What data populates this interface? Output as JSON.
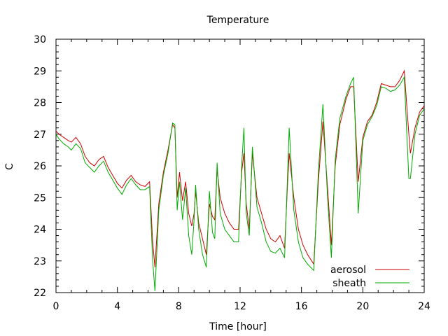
{
  "chart_data": {
    "type": "line",
    "title": "Temperature",
    "xlabel": "Time [hour]",
    "ylabel": "C",
    "xlim": [
      0,
      24
    ],
    "ylim": [
      22,
      30
    ],
    "xticks": [
      0,
      4,
      8,
      12,
      16,
      20,
      24
    ],
    "yticks": [
      22,
      23,
      24,
      25,
      26,
      27,
      28,
      29,
      30
    ],
    "legend_position": "bottom-right",
    "grid": false,
    "series": [
      {
        "name": "aerosol",
        "color": "#cc0000",
        "points": [
          [
            0.0,
            27.1
          ],
          [
            0.2,
            27.0
          ],
          [
            0.5,
            26.9
          ],
          [
            0.8,
            26.8
          ],
          [
            1.0,
            26.75
          ],
          [
            1.3,
            26.9
          ],
          [
            1.6,
            26.7
          ],
          [
            1.9,
            26.3
          ],
          [
            2.2,
            26.1
          ],
          [
            2.5,
            26.0
          ],
          [
            2.8,
            26.2
          ],
          [
            3.1,
            26.3
          ],
          [
            3.4,
            25.95
          ],
          [
            3.7,
            25.7
          ],
          [
            4.0,
            25.45
          ],
          [
            4.3,
            25.3
          ],
          [
            4.6,
            25.55
          ],
          [
            4.9,
            25.7
          ],
          [
            5.2,
            25.5
          ],
          [
            5.5,
            25.4
          ],
          [
            5.8,
            25.35
          ],
          [
            6.1,
            25.5
          ],
          [
            6.3,
            23.6
          ],
          [
            6.45,
            22.8
          ],
          [
            6.7,
            24.8
          ],
          [
            7.0,
            25.8
          ],
          [
            7.3,
            26.5
          ],
          [
            7.6,
            27.3
          ],
          [
            7.75,
            27.2
          ],
          [
            7.9,
            25.0
          ],
          [
            8.05,
            25.8
          ],
          [
            8.25,
            24.9
          ],
          [
            8.45,
            25.5
          ],
          [
            8.65,
            24.5
          ],
          [
            8.85,
            24.1
          ],
          [
            9.0,
            24.5
          ],
          [
            9.1,
            25.2
          ],
          [
            9.3,
            24.2
          ],
          [
            9.55,
            23.7
          ],
          [
            9.8,
            23.2
          ],
          [
            10.0,
            24.8
          ],
          [
            10.2,
            24.4
          ],
          [
            10.35,
            24.3
          ],
          [
            10.5,
            25.9
          ],
          [
            10.7,
            25.0
          ],
          [
            11.0,
            24.5
          ],
          [
            11.3,
            24.2
          ],
          [
            11.6,
            24.0
          ],
          [
            11.9,
            24.0
          ],
          [
            12.1,
            25.8
          ],
          [
            12.25,
            26.4
          ],
          [
            12.4,
            24.8
          ],
          [
            12.6,
            24.0
          ],
          [
            12.8,
            26.4
          ],
          [
            13.1,
            25.0
          ],
          [
            13.4,
            24.5
          ],
          [
            13.7,
            24.0
          ],
          [
            14.0,
            23.7
          ],
          [
            14.3,
            23.6
          ],
          [
            14.6,
            23.8
          ],
          [
            14.9,
            23.4
          ],
          [
            15.1,
            25.5
          ],
          [
            15.2,
            26.4
          ],
          [
            15.5,
            25.0
          ],
          [
            15.8,
            24.0
          ],
          [
            16.1,
            23.5
          ],
          [
            16.4,
            23.2
          ],
          [
            16.8,
            22.9
          ],
          [
            17.1,
            25.5
          ],
          [
            17.4,
            27.4
          ],
          [
            17.7,
            25.3
          ],
          [
            17.95,
            23.5
          ],
          [
            18.2,
            26.0
          ],
          [
            18.5,
            27.3
          ],
          [
            18.9,
            28.1
          ],
          [
            19.2,
            28.5
          ],
          [
            19.4,
            28.5
          ],
          [
            19.7,
            25.5
          ],
          [
            20.0,
            26.9
          ],
          [
            20.3,
            27.4
          ],
          [
            20.6,
            27.6
          ],
          [
            20.9,
            28.0
          ],
          [
            21.2,
            28.6
          ],
          [
            21.5,
            28.55
          ],
          [
            21.8,
            28.5
          ],
          [
            22.1,
            28.5
          ],
          [
            22.4,
            28.7
          ],
          [
            22.7,
            29.0
          ],
          [
            23.0,
            27.0
          ],
          [
            23.1,
            26.4
          ],
          [
            23.4,
            27.2
          ],
          [
            23.7,
            27.7
          ],
          [
            24.0,
            27.9
          ]
        ]
      },
      {
        "name": "sheath",
        "color": "#00aa00",
        "points": [
          [
            0.0,
            27.0
          ],
          [
            0.2,
            26.85
          ],
          [
            0.5,
            26.7
          ],
          [
            0.8,
            26.6
          ],
          [
            1.0,
            26.5
          ],
          [
            1.3,
            26.7
          ],
          [
            1.6,
            26.55
          ],
          [
            1.9,
            26.1
          ],
          [
            2.2,
            25.95
          ],
          [
            2.5,
            25.8
          ],
          [
            2.8,
            26.0
          ],
          [
            3.1,
            26.15
          ],
          [
            3.4,
            25.8
          ],
          [
            3.7,
            25.55
          ],
          [
            4.0,
            25.3
          ],
          [
            4.3,
            25.1
          ],
          [
            4.6,
            25.4
          ],
          [
            4.9,
            25.6
          ],
          [
            5.2,
            25.4
          ],
          [
            5.5,
            25.25
          ],
          [
            5.8,
            25.25
          ],
          [
            6.1,
            25.35
          ],
          [
            6.3,
            23.0
          ],
          [
            6.45,
            22.05
          ],
          [
            6.7,
            24.6
          ],
          [
            7.0,
            25.7
          ],
          [
            7.3,
            26.4
          ],
          [
            7.6,
            27.35
          ],
          [
            7.75,
            27.3
          ],
          [
            7.9,
            24.6
          ],
          [
            8.05,
            25.5
          ],
          [
            8.25,
            24.3
          ],
          [
            8.45,
            25.3
          ],
          [
            8.65,
            23.8
          ],
          [
            8.85,
            23.2
          ],
          [
            9.0,
            24.3
          ],
          [
            9.1,
            25.4
          ],
          [
            9.3,
            24.0
          ],
          [
            9.55,
            23.2
          ],
          [
            9.8,
            22.8
          ],
          [
            10.0,
            25.2
          ],
          [
            10.2,
            23.9
          ],
          [
            10.35,
            23.7
          ],
          [
            10.5,
            26.1
          ],
          [
            10.7,
            24.5
          ],
          [
            11.0,
            24.0
          ],
          [
            11.3,
            23.8
          ],
          [
            11.6,
            23.6
          ],
          [
            11.9,
            23.6
          ],
          [
            12.1,
            26.0
          ],
          [
            12.25,
            27.2
          ],
          [
            12.4,
            24.5
          ],
          [
            12.6,
            23.8
          ],
          [
            12.8,
            26.6
          ],
          [
            13.1,
            24.7
          ],
          [
            13.4,
            24.2
          ],
          [
            13.7,
            23.6
          ],
          [
            14.0,
            23.3
          ],
          [
            14.3,
            23.25
          ],
          [
            14.6,
            23.4
          ],
          [
            14.9,
            23.1
          ],
          [
            15.1,
            25.8
          ],
          [
            15.2,
            27.2
          ],
          [
            15.5,
            24.6
          ],
          [
            15.8,
            23.6
          ],
          [
            16.1,
            23.1
          ],
          [
            16.4,
            22.9
          ],
          [
            16.8,
            22.7
          ],
          [
            17.1,
            25.8
          ],
          [
            17.4,
            27.95
          ],
          [
            17.7,
            25.0
          ],
          [
            17.95,
            23.1
          ],
          [
            18.2,
            26.2
          ],
          [
            18.5,
            27.5
          ],
          [
            18.9,
            28.2
          ],
          [
            19.2,
            28.6
          ],
          [
            19.4,
            28.8
          ],
          [
            19.7,
            24.5
          ],
          [
            20.0,
            26.8
          ],
          [
            20.3,
            27.3
          ],
          [
            20.6,
            27.55
          ],
          [
            20.9,
            27.9
          ],
          [
            21.2,
            28.5
          ],
          [
            21.5,
            28.45
          ],
          [
            21.8,
            28.35
          ],
          [
            22.1,
            28.4
          ],
          [
            22.4,
            28.55
          ],
          [
            22.7,
            28.8
          ],
          [
            23.0,
            25.6
          ],
          [
            23.1,
            25.6
          ],
          [
            23.4,
            27.0
          ],
          [
            23.7,
            27.6
          ],
          [
            24.0,
            27.8
          ]
        ]
      }
    ]
  }
}
